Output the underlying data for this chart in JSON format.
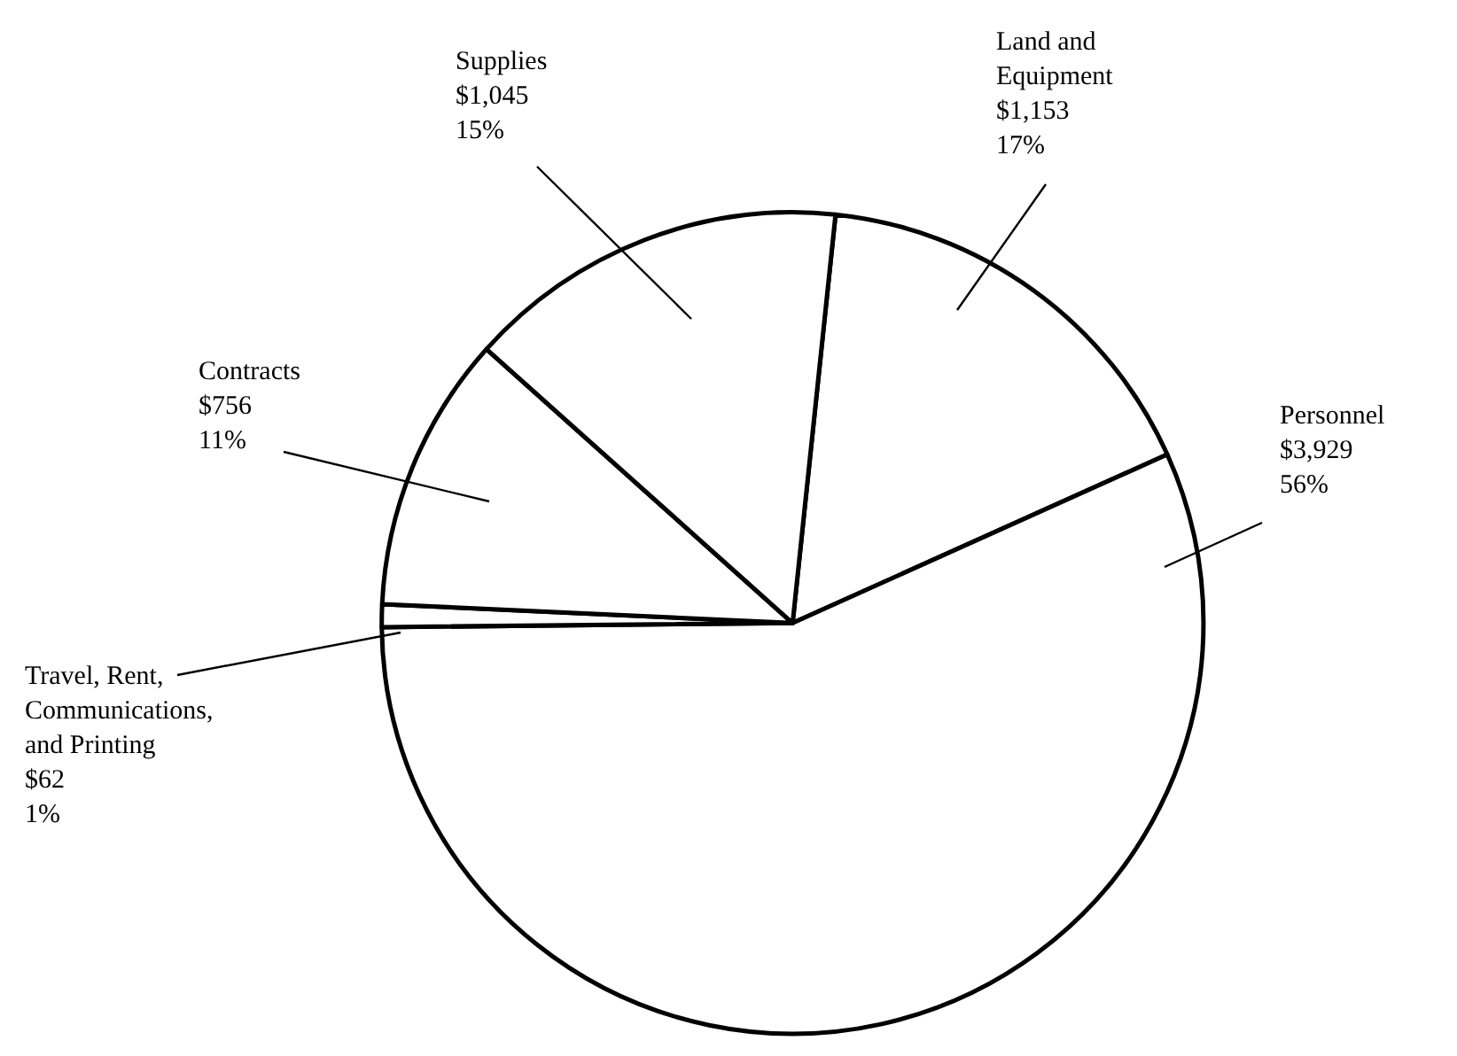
{
  "chart_data": {
    "type": "pie",
    "categories": [
      "Land and Equipment",
      "Personnel",
      "Travel, Rent, Communications, and Printing",
      "Contracts",
      "Supplies"
    ],
    "values": [
      1153,
      3929,
      62,
      756,
      1045
    ],
    "value_labels": [
      "$1,153\n17%",
      "$3,929\n56%",
      "$62\n1%",
      "$756\n11%",
      "$1,045\n15%"
    ],
    "colors": [
      "#ffffff",
      "#ffffff",
      "#ffffff",
      "#ffffff",
      "#ffffff"
    ],
    "legend": false
  }
}
